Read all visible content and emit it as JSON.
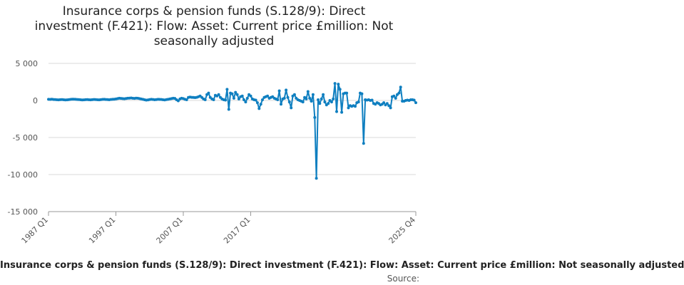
{
  "chart_data": {
    "type": "line",
    "title_lines": [
      "Insurance corps & pension funds (S.128/9): Direct",
      "investment (F.421): Flow: Asset: Current price £million: Not",
      "seasonally adjusted"
    ],
    "y_ticks": [
      {
        "value": 5000,
        "label": "5 000"
      },
      {
        "value": 0,
        "label": "0"
      },
      {
        "value": -5000,
        "label": "-5 000"
      },
      {
        "value": -10000,
        "label": "-10 000"
      },
      {
        "value": -15000,
        "label": "-15 000"
      }
    ],
    "ylim": [
      -15000,
      5000
    ],
    "x_ticks": [
      "1987 Q1",
      "1997 Q1",
      "2007 Q1",
      "2017 Q1",
      "2025 Q4"
    ],
    "grid": "horizontal",
    "legend_text": "Insurance corps & pension funds (S.128/9): Direct investment (F.421): Flow: Asset: Current price £million: Not seasonally adjusted",
    "source_label": "Source:",
    "series": [
      {
        "color": "#0f7fc0",
        "values": [
          150,
          140,
          160,
          130,
          120,
          100,
          90,
          110,
          120,
          100,
          80,
          90,
          110,
          140,
          160,
          170,
          150,
          130,
          120,
          100,
          80,
          90,
          110,
          120,
          100,
          90,
          110,
          130,
          120,
          100,
          90,
          110,
          140,
          150,
          130,
          120,
          100,
          130,
          150,
          170,
          200,
          250,
          300,
          280,
          250,
          230,
          260,
          300,
          320,
          340,
          300,
          280,
          320,
          300,
          250,
          200,
          150,
          100,
          50,
          80,
          120,
          150,
          130,
          100,
          120,
          150,
          140,
          130,
          100,
          80,
          120,
          150,
          200,
          250,
          300,
          280,
          100,
          -50,
          200,
          300,
          250,
          150,
          100,
          400,
          450,
          420,
          400,
          380,
          420,
          500,
          600,
          400,
          200,
          100,
          800,
          1000,
          400,
          200,
          100,
          700,
          600,
          800,
          400,
          200,
          100,
          50,
          1500,
          -1200,
          1000,
          900,
          300,
          1100,
          800,
          200,
          500,
          600,
          100,
          -200,
          300,
          800,
          600,
          200,
          100,
          50,
          -300,
          -1100,
          -500,
          100,
          400,
          500,
          600,
          300,
          400,
          500,
          300,
          200,
          100,
          1300,
          -500,
          200,
          300,
          1400,
          400,
          -200,
          -1000,
          600,
          800,
          300,
          100,
          0,
          -100,
          -200,
          400,
          200,
          1200,
          300,
          -100,
          800,
          -2300,
          -10500,
          100,
          -400,
          200,
          800,
          -200,
          -600,
          -400,
          0,
          -200,
          200,
          2300,
          -1500,
          2200,
          1500,
          -1600,
          900,
          1000,
          1000,
          -1000,
          -700,
          -800,
          -700,
          -800,
          -300,
          -200,
          1000,
          900,
          -5800,
          100,
          50,
          100,
          0,
          50,
          -400,
          -500,
          -300,
          -400,
          -600,
          -500,
          -300,
          -600,
          -400,
          -700,
          -1000,
          500,
          600,
          300,
          800,
          1000,
          1800,
          -100,
          -100,
          0,
          50,
          0,
          100,
          100,
          50,
          -300
        ]
      }
    ]
  }
}
